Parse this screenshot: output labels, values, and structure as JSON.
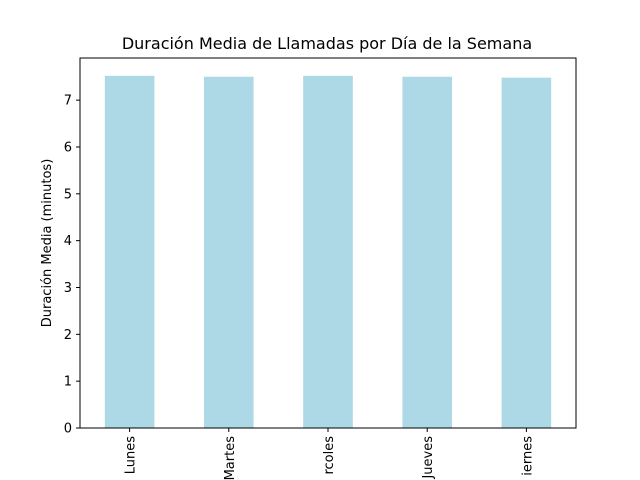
{
  "chart_data": {
    "type": "bar",
    "title": "Duración Media de Llamadas por Día de la Semana",
    "xlabel": "",
    "ylabel": "Duración Media (minutos)",
    "categories": [
      "Lunes",
      "Martes",
      "Miércoles",
      "Jueves",
      "Viernes"
    ],
    "visible_tick_labels": [
      "Lunes",
      "Martes",
      "rcoles",
      "Jueves",
      "iernes"
    ],
    "values": [
      7.52,
      7.5,
      7.52,
      7.5,
      7.48
    ],
    "ylim": [
      0,
      7.9
    ],
    "yticks": [
      0,
      1,
      2,
      3,
      4,
      5,
      6,
      7
    ],
    "grid": false,
    "bar_color": "#add8e6"
  }
}
